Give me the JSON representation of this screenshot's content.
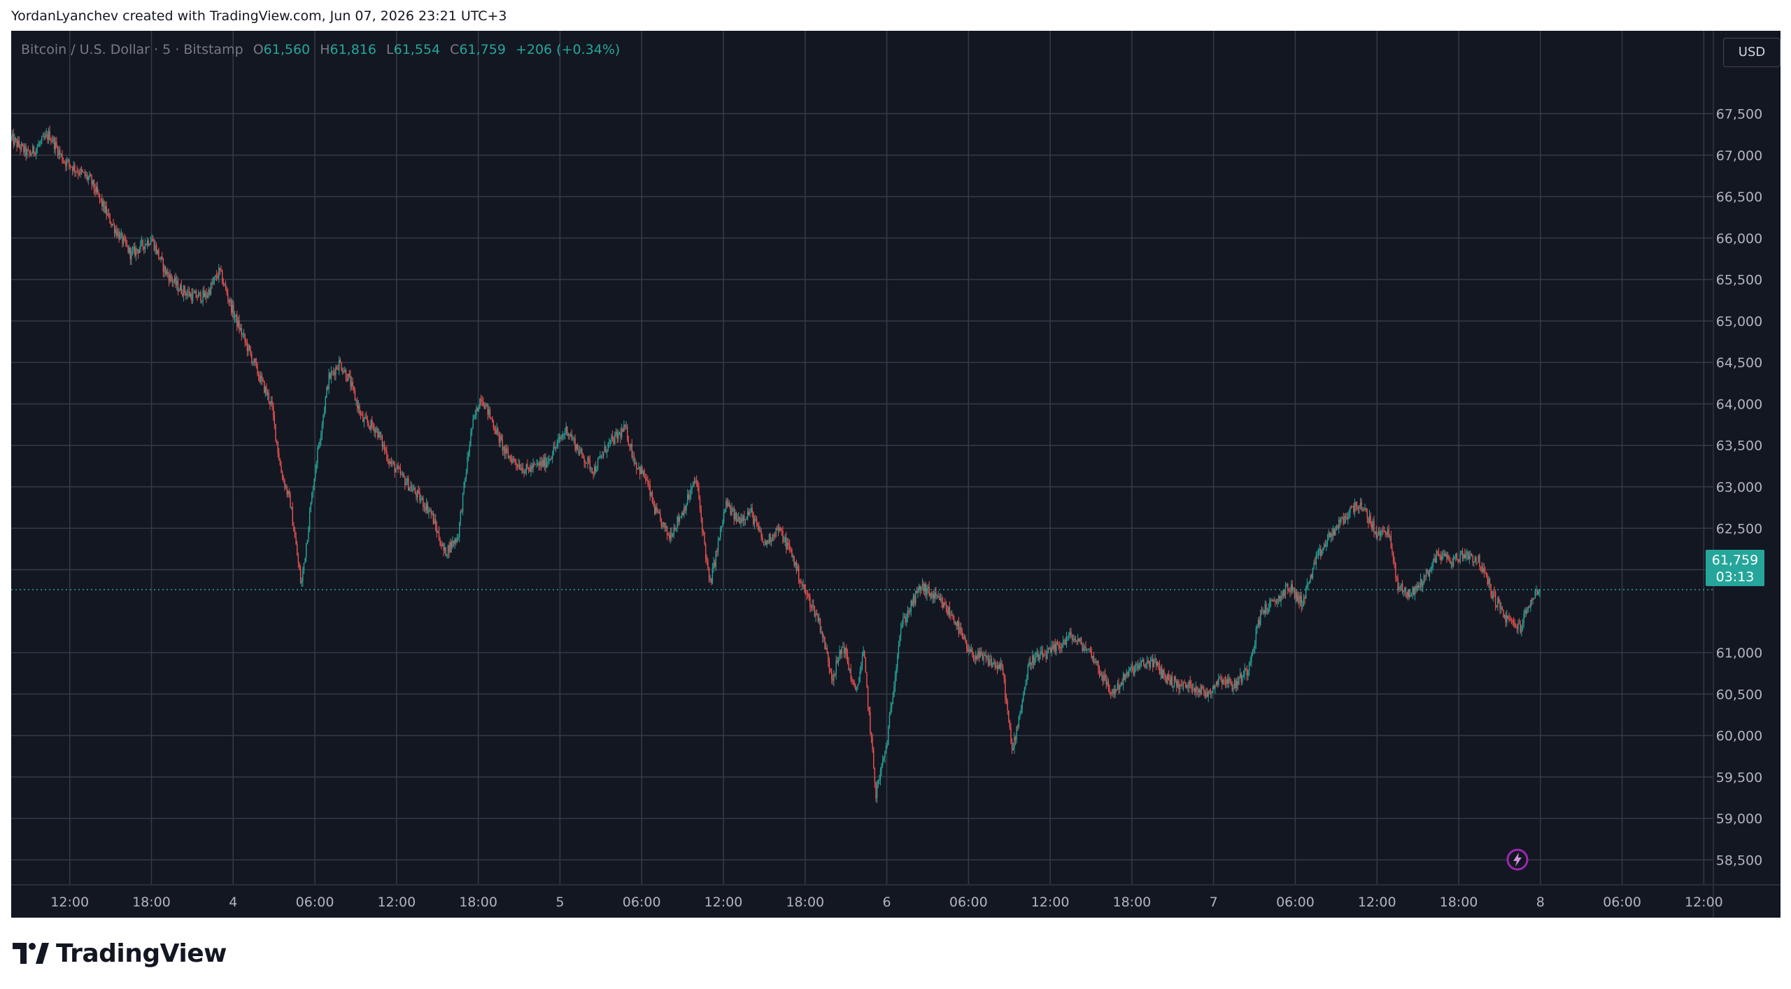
{
  "header": {
    "attribution": "YordanLyanchev created with TradingView.com, Jun 07, 2026 23:21 UTC+3"
  },
  "legend": {
    "symbol": "Bitcoin / U.S. Dollar · 5 · Bitstamp",
    "open_label": "O",
    "open": "61,560",
    "high_label": "H",
    "high": "61,816",
    "low_label": "L",
    "low": "61,554",
    "close_label": "C",
    "close": "61,759",
    "change": "+206 (+0.34%)"
  },
  "currency": "USD",
  "last_price": {
    "price": "61,759",
    "countdown": "03:13"
  },
  "brand": {
    "name": "TradingView"
  },
  "colors": {
    "up": "#26a69a",
    "down": "#ef5350",
    "background": "#131722",
    "grid": "#363a45",
    "text": "#b2b5be"
  },
  "chart_data": {
    "type": "candlestick",
    "title": "Bitcoin / U.S. Dollar · 5 · Bitstamp",
    "ylim": [
      58200,
      68500
    ],
    "y_ticks": [
      "67,500",
      "67,000",
      "66,500",
      "66,000",
      "65,500",
      "65,000",
      "64,500",
      "64,000",
      "63,500",
      "63,000",
      "62,500",
      "62,000",
      "61,000",
      "60,500",
      "60,000",
      "59,500",
      "59,000",
      "58,500"
    ],
    "x_ticks": [
      "12:00",
      "18:00",
      "4",
      "06:00",
      "12:00",
      "18:00",
      "5",
      "06:00",
      "12:00",
      "18:00",
      "6",
      "06:00",
      "12:00",
      "18:00",
      "7",
      "06:00",
      "12:00",
      "18:00",
      "8",
      "06:00",
      "12:00"
    ],
    "x_range_hours": [
      -4.3,
      120.7
    ],
    "x_tick_hours": [
      0,
      6,
      12,
      18,
      24,
      30,
      36,
      42,
      48,
      54,
      60,
      66,
      72,
      78,
      84,
      90,
      96,
      102,
      108,
      114,
      120
    ],
    "price_path_hours": [
      -4.3,
      -3.0,
      -1.5,
      -0.5,
      0.7,
      1.5,
      3.0,
      4.5,
      6.0,
      7.0,
      8.0,
      9.0,
      10.0,
      11.0,
      12.0,
      13.0,
      14.0,
      14.8,
      15.5,
      16.2,
      17.0,
      18.0,
      19.0,
      19.8,
      20.5,
      21.5,
      22.5,
      23.5,
      25.0,
      26.5,
      27.5,
      28.5,
      29.5,
      30.2,
      31.0,
      32.0,
      33.5,
      35.0,
      36.5,
      37.5,
      38.5,
      39.5,
      40.8,
      41.5,
      42.3,
      43.0,
      44.0,
      45.0,
      46.0,
      47.0,
      48.2,
      49.0,
      50.0,
      51.0,
      52.0,
      53.0,
      53.8,
      55.0,
      56.0,
      56.8,
      57.7,
      58.3,
      59.2,
      60.0,
      61.0,
      62.5,
      64.0,
      65.0,
      66.0,
      67.5,
      68.5,
      69.2,
      70.5,
      72.0,
      73.5,
      75.0,
      76.5,
      78.0,
      79.5,
      80.5,
      81.5,
      82.5,
      83.5,
      84.5,
      85.5,
      86.5,
      87.5,
      88.5,
      89.5,
      90.5,
      91.5,
      92.5,
      93.5,
      94.5,
      95.5,
      96.0,
      96.8,
      97.5,
      98.5,
      99.5,
      100.5,
      101.5,
      102.5,
      103.5,
      104.5,
      105.5,
      106.5,
      107.0,
      107.5,
      108.0
    ],
    "price_path": [
      67200,
      67000,
      67250,
      66950,
      66800,
      66700,
      66200,
      65800,
      66000,
      65600,
      65400,
      65300,
      65300,
      65600,
      65100,
      64700,
      64300,
      64000,
      63200,
      62800,
      61800,
      63200,
      64300,
      64500,
      64300,
      63800,
      63700,
      63300,
      63000,
      62700,
      62200,
      62400,
      63700,
      64100,
      63800,
      63400,
      63200,
      63300,
      63700,
      63400,
      63200,
      63500,
      63700,
      63300,
      63100,
      62700,
      62400,
      62700,
      63100,
      61800,
      62800,
      62600,
      62700,
      62300,
      62500,
      62200,
      61800,
      61400,
      60700,
      61100,
      60500,
      61000,
      59300,
      59900,
      61300,
      61800,
      61600,
      61400,
      61000,
      60900,
      60800,
      59800,
      60900,
      61000,
      61200,
      61000,
      60500,
      60800,
      60900,
      60700,
      60600,
      60600,
      60500,
      60700,
      60600,
      60800,
      61500,
      61600,
      61800,
      61600,
      62100,
      62400,
      62600,
      62800,
      62600,
      62400,
      62500,
      61800,
      61700,
      61900,
      62200,
      62100,
      62200,
      62100,
      61700,
      61400,
      61300,
      61500,
      61700,
      61759
    ]
  }
}
